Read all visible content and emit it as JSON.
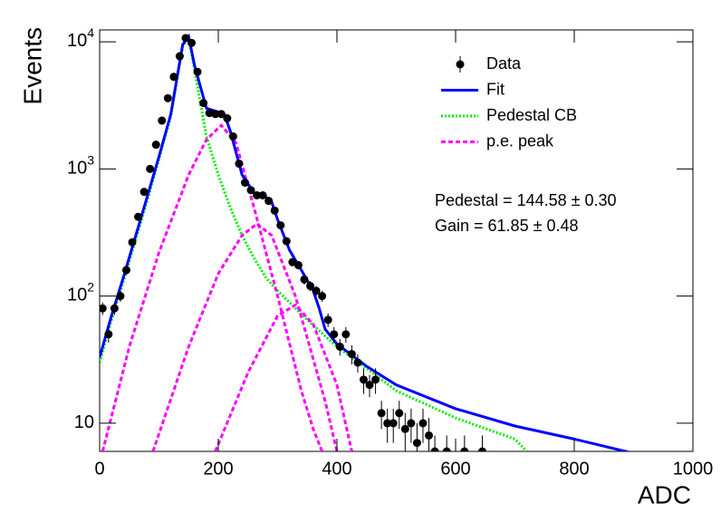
{
  "chart_data": {
    "type": "fit",
    "xlabel": "ADC",
    "ylabel": "Events",
    "log_y": true,
    "xlim": [
      0,
      1000
    ],
    "xticks": [
      0,
      200,
      400,
      600,
      800,
      1000
    ],
    "ylim": [
      6,
      12400
    ],
    "yticks": [
      {
        "value": 10,
        "label": "10"
      },
      {
        "value": 100,
        "label": "10^2"
      },
      {
        "value": 1000,
        "label": "10^3"
      },
      {
        "value": 10000,
        "label": "10^4"
      }
    ],
    "series": [
      {
        "name": "Data",
        "color": "#000000",
        "style": "points",
        "x": [
          5,
          15,
          25,
          35,
          45,
          55,
          65,
          75,
          85,
          95,
          105,
          115,
          125,
          135,
          145,
          155,
          165,
          175,
          185,
          195,
          205,
          215,
          225,
          235,
          245,
          255,
          265,
          275,
          285,
          295,
          305,
          315,
          325,
          335,
          345,
          355,
          365,
          375,
          385,
          395,
          405,
          415,
          425,
          435,
          445,
          455,
          465,
          475,
          485,
          495,
          505,
          515,
          525,
          535,
          545,
          555,
          565,
          585,
          615,
          645
        ],
        "values": [
          80,
          50,
          80,
          100,
          160,
          265,
          420,
          660,
          1000,
          1550,
          2400,
          3600,
          5300,
          7700,
          10700,
          9800,
          5800,
          3300,
          2750,
          2700,
          2700,
          2500,
          1800,
          1100,
          780,
          680,
          620,
          620,
          560,
          470,
          360,
          270,
          185,
          175,
          135,
          120,
          110,
          100,
          65,
          50,
          40,
          50,
          35,
          30,
          22,
          20,
          22,
          12,
          10,
          10,
          12,
          9,
          10,
          7,
          10,
          8,
          6,
          6,
          6,
          6
        ],
        "errors": [
          9,
          7,
          9,
          10,
          13,
          16,
          20,
          26,
          32,
          39,
          49,
          60,
          73,
          88,
          103,
          99,
          76,
          57,
          52,
          52,
          52,
          50,
          42,
          33,
          28,
          26,
          25,
          25,
          24,
          22,
          19,
          16,
          14,
          13,
          12,
          11,
          10,
          10,
          8,
          7,
          6,
          7,
          6,
          5,
          5,
          4,
          5,
          3,
          3,
          3,
          3,
          3,
          3,
          3,
          3,
          3,
          2,
          2,
          2,
          2
        ]
      },
      {
        "name": "Fit",
        "color": "#0000ff",
        "style": "solid",
        "x": [
          0,
          20,
          40,
          60,
          80,
          100,
          120,
          140,
          150,
          160,
          180,
          200,
          210,
          220,
          240,
          260,
          280,
          290,
          300,
          320,
          340,
          360,
          370,
          380,
          400,
          450,
          500,
          600,
          700,
          800,
          900
        ],
        "values": [
          33,
          70,
          140,
          290,
          600,
          1250,
          2700,
          9500,
          11000,
          6500,
          3000,
          2800,
          2700,
          2000,
          900,
          650,
          600,
          550,
          400,
          230,
          160,
          110,
          80,
          55,
          42,
          28,
          20,
          13,
          9.5,
          7.5,
          5.8
        ]
      },
      {
        "name": "Pedestal CB",
        "color": "#00ee00",
        "style": "dotted",
        "x": [
          0,
          20,
          40,
          60,
          80,
          100,
          120,
          140,
          150,
          160,
          180,
          200,
          220,
          240,
          260,
          280,
          300,
          350,
          400,
          450,
          500,
          600,
          700,
          720
        ],
        "values": [
          30,
          65,
          130,
          270,
          560,
          1200,
          2600,
          9300,
          10800,
          6000,
          1800,
          900,
          500,
          300,
          200,
          140,
          110,
          65,
          40,
          27,
          18,
          11,
          7.5,
          6
        ]
      },
      {
        "name": "p.e. peak",
        "color": "#ff00ff",
        "style": "dashed",
        "pieces": [
          {
            "x": [
              5,
              50,
              100,
              150,
              180,
              205,
              230,
              260,
              300,
              340,
              360,
              375
            ],
            "values": [
              6,
              40,
              220,
              900,
              1700,
              2200,
              1600,
              500,
              100,
              18,
              9,
              6
            ]
          },
          {
            "x": [
              90,
              150,
              200,
              240,
              265,
              290,
              330,
              380,
              400
            ],
            "values": [
              6,
              40,
              150,
              300,
              370,
              300,
              100,
              15,
              6
            ]
          },
          {
            "x": [
              195,
              250,
              300,
              330,
              360,
              400,
              425
            ],
            "values": [
              6,
              25,
              70,
              85,
              60,
              20,
              6
            ]
          }
        ]
      }
    ],
    "annotations": [
      "Pedestal = 144.58 ± 0.30",
      "Gain = 61.85 ± 0.48"
    ]
  }
}
